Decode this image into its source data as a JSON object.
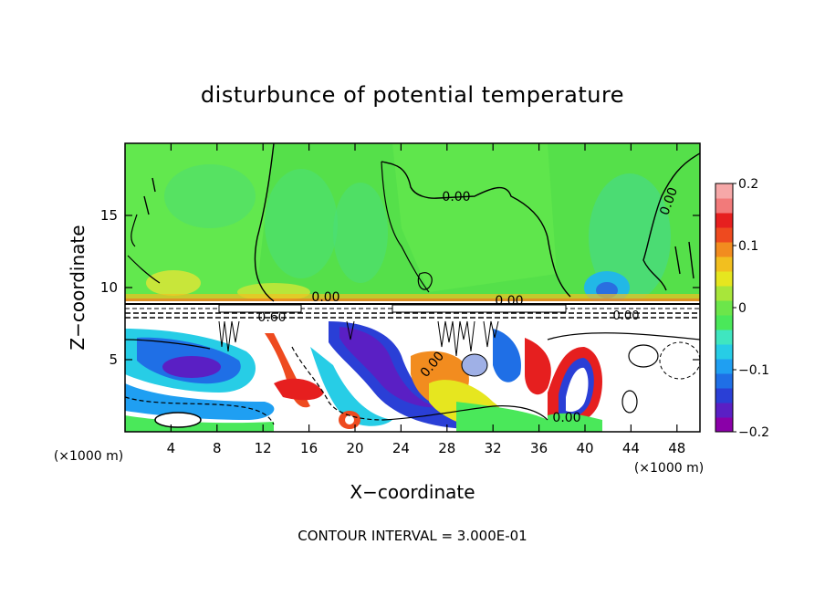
{
  "chart_data": {
    "type": "heatmap",
    "title": "disturbunce of potential temperature",
    "xlabel": "X−coordinate",
    "ylabel": "Z−coordinate",
    "x_unit_left": "(×1000 m)",
    "x_unit_right": "(×1000 m)",
    "xlim": [
      0,
      50
    ],
    "ylim": [
      0,
      20
    ],
    "x_ticks": [
      4,
      8,
      12,
      16,
      20,
      24,
      28,
      32,
      36,
      40,
      44,
      48
    ],
    "y_ticks": [
      5,
      10,
      15
    ],
    "colorbar": {
      "range": [
        -0.2,
        0.2
      ],
      "tick_values": [
        0.2,
        0.1,
        0,
        -0.1,
        -0.2
      ],
      "tick_labels": [
        "0.2",
        "0.1",
        "0",
        "−0.1",
        "−0.2"
      ],
      "colors": [
        "#8a00a8",
        "#5a1fc4",
        "#2a3fd6",
        "#1f6fe6",
        "#1f9ff2",
        "#27cde6",
        "#3fe6c0",
        "#4ae85a",
        "#6ce64a",
        "#a8e63a",
        "#e6e61f",
        "#f2bf1f",
        "#f28c1f",
        "#ee4a1f",
        "#e61f1f",
        "#f27a7a",
        "#f6a8a8"
      ]
    },
    "contour_labels": [
      "0.00",
      "0.00",
      "0.00",
      "0.00",
      "0.00",
      "0.60",
      "0.00",
      "0.00"
    ],
    "footer": "CONTOUR INTERVAL = 3.000E-01"
  }
}
